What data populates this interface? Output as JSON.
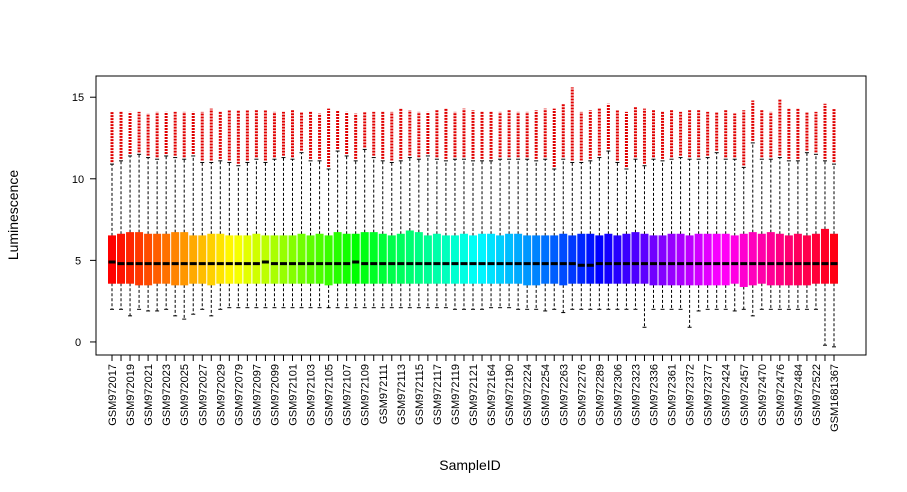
{
  "chart_data": {
    "type": "boxplot",
    "x_label": "SampleID",
    "y_label": "Luminescence",
    "categories": [
      "GSM972017",
      null,
      "GSM972019",
      null,
      "GSM972021",
      null,
      "GSM972023",
      null,
      "GSM972025",
      null,
      "GSM972027",
      null,
      "GSM972029",
      null,
      "GSM972079",
      null,
      "GSM972097",
      null,
      "GSM972099",
      null,
      "GSM972101",
      null,
      "GSM972103",
      null,
      "GSM972105",
      null,
      "GSM972107",
      null,
      "GSM972109",
      null,
      "GSM972111",
      null,
      "GSM972113",
      null,
      "GSM972115",
      null,
      "GSM972117",
      null,
      "GSM972119",
      null,
      "GSM972121",
      null,
      "GSM972164",
      null,
      "GSM972190",
      null,
      "GSM972224",
      null,
      "GSM972254",
      null,
      "GSM972263",
      null,
      "GSM972276",
      null,
      "GSM972289",
      null,
      "GSM972306",
      null,
      "GSM972323",
      null,
      "GSM972336",
      null,
      "GSM972361",
      null,
      "GSM972372",
      null,
      "GSM972377",
      null,
      "GSM972424",
      null,
      "GSM972457",
      null,
      "GSM972470",
      null,
      "GSM972476",
      null,
      "GSM972484",
      null,
      "GSM972522",
      null,
      "GSM1681367"
    ],
    "whisker_low": [
      2.0,
      2.0,
      1.6,
      2.0,
      1.9,
      1.9,
      2.0,
      1.6,
      1.4,
      1.7,
      2.0,
      1.6,
      2.0,
      2.1,
      2.1,
      2.1,
      2.1,
      2.1,
      2.1,
      2.1,
      2.1,
      2.1,
      2.1,
      2.1,
      2.1,
      2.1,
      2.1,
      2.1,
      2.1,
      2.1,
      2.1,
      2.1,
      2.1,
      2.1,
      2.1,
      2.1,
      2.1,
      2.1,
      2.0,
      2.0,
      2.0,
      2.0,
      2.1,
      2.1,
      2.1,
      2.0,
      2.0,
      2.0,
      1.9,
      2.0,
      1.8,
      2.0,
      2.0,
      2.0,
      2.0,
      2.0,
      2.0,
      2.0,
      2.0,
      0.9,
      2.0,
      2.0,
      2.0,
      2.0,
      0.9,
      1.9,
      2.0,
      2.0,
      2.0,
      1.9,
      2.0,
      1.6,
      2.0,
      2.0,
      2.0,
      2.0,
      2.0,
      2.0,
      2.0,
      -0.2,
      -0.3
    ],
    "q1": [
      3.6,
      3.6,
      3.6,
      3.5,
      3.5,
      3.6,
      3.6,
      3.5,
      3.5,
      3.6,
      3.6,
      3.5,
      3.6,
      3.6,
      3.6,
      3.6,
      3.6,
      3.6,
      3.6,
      3.6,
      3.6,
      3.6,
      3.6,
      3.6,
      3.5,
      3.6,
      3.6,
      3.6,
      3.6,
      3.6,
      3.6,
      3.6,
      3.6,
      3.6,
      3.6,
      3.6,
      3.6,
      3.6,
      3.6,
      3.6,
      3.6,
      3.6,
      3.6,
      3.6,
      3.6,
      3.6,
      3.5,
      3.5,
      3.6,
      3.6,
      3.5,
      3.6,
      3.6,
      3.6,
      3.6,
      3.6,
      3.6,
      3.6,
      3.6,
      3.6,
      3.5,
      3.5,
      3.5,
      3.5,
      3.5,
      3.5,
      3.5,
      3.5,
      3.5,
      3.6,
      3.4,
      3.5,
      3.6,
      3.5,
      3.5,
      3.5,
      3.5,
      3.5,
      3.6,
      3.6,
      3.6
    ],
    "median": [
      4.9,
      4.8,
      4.8,
      4.8,
      4.8,
      4.8,
      4.8,
      4.8,
      4.8,
      4.8,
      4.8,
      4.8,
      4.8,
      4.8,
      4.8,
      4.8,
      4.8,
      4.9,
      4.8,
      4.8,
      4.8,
      4.8,
      4.8,
      4.8,
      4.8,
      4.8,
      4.8,
      4.9,
      4.8,
      4.8,
      4.8,
      4.8,
      4.8,
      4.8,
      4.8,
      4.8,
      4.8,
      4.8,
      4.8,
      4.8,
      4.8,
      4.8,
      4.8,
      4.8,
      4.8,
      4.8,
      4.8,
      4.8,
      4.8,
      4.8,
      4.8,
      4.8,
      4.7,
      4.7,
      4.8,
      4.8,
      4.8,
      4.8,
      4.8,
      4.8,
      4.8,
      4.8,
      4.8,
      4.8,
      4.8,
      4.8,
      4.8,
      4.8,
      4.8,
      4.8,
      4.8,
      4.8,
      4.8,
      4.8,
      4.8,
      4.8,
      4.8,
      4.8,
      4.8,
      4.8,
      4.8
    ],
    "q3": [
      6.5,
      6.6,
      6.7,
      6.7,
      6.6,
      6.6,
      6.6,
      6.7,
      6.7,
      6.5,
      6.5,
      6.6,
      6.6,
      6.5,
      6.5,
      6.5,
      6.6,
      6.5,
      6.5,
      6.5,
      6.5,
      6.6,
      6.5,
      6.6,
      6.5,
      6.7,
      6.6,
      6.6,
      6.7,
      6.7,
      6.6,
      6.5,
      6.6,
      6.8,
      6.7,
      6.5,
      6.6,
      6.5,
      6.5,
      6.6,
      6.5,
      6.6,
      6.6,
      6.5,
      6.6,
      6.6,
      6.5,
      6.5,
      6.5,
      6.5,
      6.6,
      6.5,
      6.6,
      6.6,
      6.5,
      6.6,
      6.5,
      6.6,
      6.7,
      6.6,
      6.5,
      6.5,
      6.6,
      6.6,
      6.5,
      6.6,
      6.6,
      6.6,
      6.6,
      6.5,
      6.6,
      6.7,
      6.6,
      6.7,
      6.6,
      6.5,
      6.6,
      6.5,
      6.6,
      6.9,
      6.6
    ],
    "whisker_high": [
      10.9,
      11.1,
      11.4,
      11.5,
      11.3,
      11.2,
      11.4,
      11.3,
      11.2,
      11.4,
      11.0,
      11.0,
      11.1,
      11.0,
      10.8,
      11.0,
      11.2,
      11.0,
      11.2,
      11.3,
      11.2,
      11.6,
      11.1,
      11.1,
      10.6,
      11.7,
      11.4,
      11.1,
      11.8,
      11.3,
      11.1,
      11.0,
      11.1,
      11.3,
      11.2,
      11.4,
      11.2,
      11.1,
      11.2,
      11.2,
      11.1,
      11.1,
      11.1,
      11.2,
      11.2,
      11.2,
      11.2,
      11.1,
      11.2,
      10.6,
      11.2,
      11.0,
      11.0,
      11.1,
      11.3,
      11.7,
      11.0,
      10.6,
      11.2,
      10.8,
      11.2,
      11.1,
      11.2,
      11.3,
      11.2,
      11.2,
      11.3,
      11.6,
      11.2,
      11.2,
      10.7,
      12.2,
      11.2,
      11.2,
      11.3,
      11.1,
      11.1,
      11.6,
      11.5,
      11.1,
      10.9
    ],
    "outlier_max": [
      14.1,
      14.1,
      14.1,
      14.1,
      14.0,
      14.1,
      14.1,
      14.1,
      14.1,
      14.1,
      14.1,
      14.3,
      14.1,
      14.2,
      14.2,
      14.2,
      14.2,
      14.2,
      14.1,
      14.1,
      14.2,
      14.1,
      14.1,
      14.0,
      14.3,
      14.2,
      14.1,
      14.0,
      14.1,
      14.1,
      14.1,
      14.1,
      14.3,
      14.2,
      14.1,
      14.1,
      14.2,
      14.3,
      14.1,
      14.3,
      14.2,
      14.1,
      14.1,
      14.1,
      14.2,
      14.1,
      14.1,
      14.2,
      14.3,
      14.3,
      14.6,
      15.6,
      14.1,
      14.2,
      14.3,
      14.6,
      14.2,
      14.1,
      14.4,
      14.3,
      14.2,
      14.1,
      14.2,
      14.1,
      14.2,
      14.2,
      14.1,
      14.1,
      14.2,
      14.0,
      14.2,
      14.8,
      14.2,
      14.1,
      14.9,
      14.3,
      14.3,
      14.1,
      14.1,
      14.6,
      14.3
    ],
    "palette": "rainbow",
    "ylim": [
      -0.8,
      16.3
    ],
    "yticks": [
      0,
      5,
      10,
      15
    ]
  }
}
